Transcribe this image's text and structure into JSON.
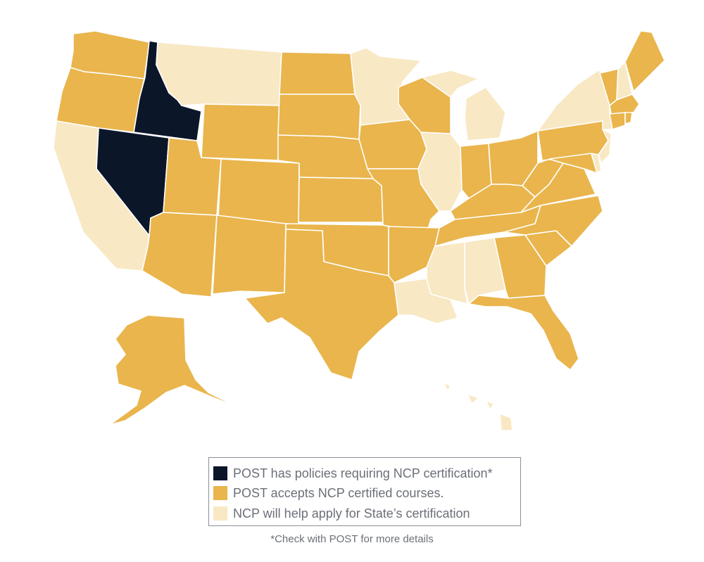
{
  "colors": {
    "requires": "#0c1629",
    "accepts": "#e9b54c",
    "helps": "#f8e8c4"
  },
  "states": {
    "requires": [
      "Idaho",
      "Nevada"
    ],
    "helps": [
      "Montana",
      "California",
      "Minnesota",
      "Michigan",
      "Illinois",
      "Louisiana",
      "Mississippi",
      "Alabama",
      "New York",
      "New Hampshire",
      "New Jersey",
      "Delaware",
      "Hawaii"
    ],
    "accepts_note": "all other states including Alaska"
  },
  "legend": {
    "items": [
      {
        "key": "requires",
        "label": "POST has policies requiring NCP certification*"
      },
      {
        "key": "accepts",
        "label": "POST accepts NCP certified courses."
      },
      {
        "key": "helps",
        "label": "NCP will help apply for State’s certification"
      }
    ]
  },
  "footnote": "*Check with POST for more details"
}
